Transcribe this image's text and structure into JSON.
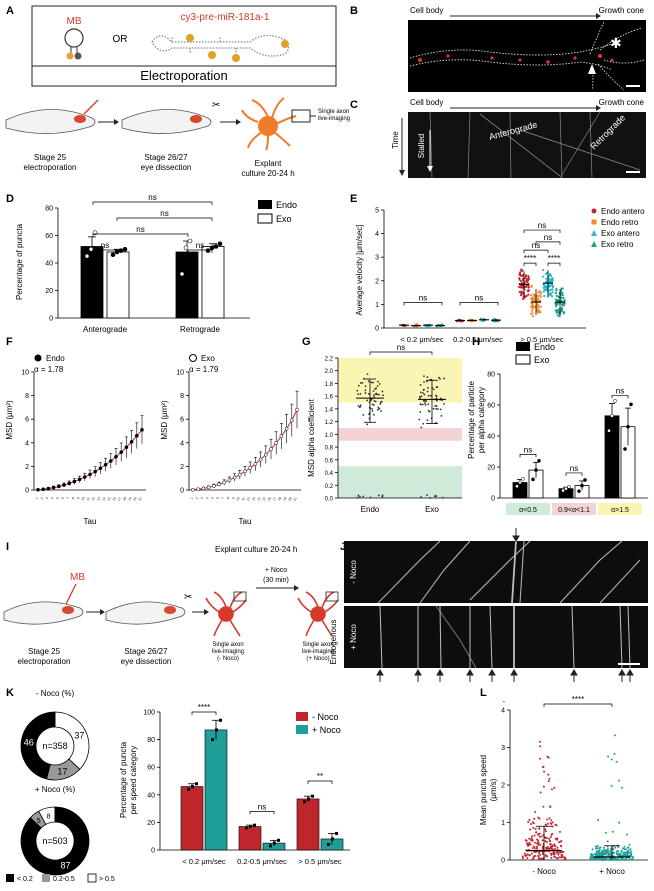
{
  "panels": {
    "A": {
      "letter": "A",
      "mb_label": "MB",
      "or_label": "OR",
      "probe_label": "cy3-pre-miR-181a-1",
      "electroporation": "Electroporation",
      "step1": [
        "Stage 25",
        "electroporation"
      ],
      "step2": [
        "Stage 26/27",
        "eye dissection"
      ],
      "step3": [
        "Explant",
        "culture 20-24 h"
      ],
      "single_axon": [
        "Single axon",
        "live-imaging"
      ]
    },
    "B": {
      "letter": "B",
      "left": "Cell body",
      "right": "Growth cone"
    },
    "C": {
      "letter": "C",
      "left": "Cell body",
      "right": "Growth cone",
      "time": "Time",
      "stalled": "Stalled",
      "anterograde": "Anterograde",
      "retrograde": "Retrograde"
    },
    "D": {
      "letter": "D",
      "ylabel": "Percentage of puncta",
      "legend": [
        "Endo",
        "Exo"
      ],
      "ns": "ns"
    },
    "E": {
      "letter": "E",
      "ylabel": "Average velocity [μm/sec]",
      "legend": [
        "Endo antero",
        "Endo retro",
        "Exo antero",
        "Exo retro"
      ],
      "ns": "ns",
      "stars": "****"
    },
    "F": {
      "letter": "F",
      "ylabel": "MSD (μm²)",
      "xlabel": "Tau",
      "endo_label": "Endo",
      "endo_alpha": "α = 1.78",
      "exo_label": "Exo",
      "exo_alpha": "α = 1.79"
    },
    "G": {
      "letter": "G",
      "ylabel": "MSD alpha coefficient",
      "ns": "ns"
    },
    "H": {
      "letter": "H",
      "ylabel": [
        "Percentage of particle",
        "per alpha category"
      ],
      "legend": [
        "Endo",
        "Exo"
      ],
      "ns": "ns",
      "cats": [
        "α<0.5",
        "0.9<α<1.1",
        "α>1.5"
      ]
    },
    "I": {
      "letter": "I",
      "mb_label": "MB",
      "explant": "Explant culture 20-24 h",
      "noco": "+ Noco",
      "noco_time": "(30 min)",
      "step1": [
        "Stage 25",
        "electroporation"
      ],
      "step2": [
        "Stage 26/27",
        "eye dissection"
      ],
      "img1": [
        "Single axon",
        "live-imaging",
        "(- Noco)"
      ],
      "img2": [
        "Single axon",
        "live-imaging",
        "(+ Noco)"
      ]
    },
    "J": {
      "letter": "J",
      "endogenous": "Endogenous",
      "minus_noco": "- Noco",
      "plus_noco": "+ Noco"
    },
    "K": {
      "letter": "K",
      "minus_title": "- Noco (%)",
      "plus_title": "+ Noco (%)",
      "minus_n": "n=358",
      "plus_n": "n=503",
      "minus_vals": [
        "46",
        "17",
        "37"
      ],
      "plus_vals": [
        "87",
        "5",
        "8"
      ],
      "legend": [
        "< 0.2",
        "0.2-0.5",
        "> 0.5"
      ],
      "ylabel": [
        "Percentage of puncta",
        "per speed category"
      ],
      "bar_legend": [
        "- Noco",
        "+ Noco"
      ],
      "ns": "ns",
      "stars4": "****",
      "stars2": "**"
    },
    "L": {
      "letter": "L",
      "ylabel": [
        "Mean puncta speed",
        "(μm/s)"
      ],
      "stars": "****"
    }
  },
  "chart_data": [
    {
      "panel": "D",
      "type": "bar",
      "categories": [
        "Anterograde",
        "Retrograde"
      ],
      "series": [
        {
          "name": "Endo",
          "values": [
            52,
            48
          ],
          "sem": [
            7,
            8
          ],
          "points": [
            [
              45,
              50,
              62
            ],
            [
              32,
              51,
              56
            ]
          ]
        },
        {
          "name": "Exo",
          "values": [
            48,
            52
          ],
          "sem": [
            2,
            2
          ],
          "points": [
            [
              46,
              48,
              49,
              50
            ],
            [
              49,
              51,
              52,
              54
            ]
          ]
        }
      ],
      "ylim": [
        0,
        80
      ],
      "yticks": [
        0,
        20,
        40,
        60,
        80
      ],
      "ylabel": "Percentage of puncta"
    },
    {
      "panel": "E",
      "type": "scatter",
      "categories": [
        "< 0.2 μm/sec",
        "0.2-0.5 μm/sec",
        "> 0.5 μm/sec"
      ],
      "series": [
        {
          "name": "Endo antero",
          "color": "#c0272d",
          "means": [
            0.12,
            0.32,
            1.85
          ]
        },
        {
          "name": "Endo retro",
          "color": "#f28b2b",
          "means": [
            0.1,
            0.32,
            1.1
          ]
        },
        {
          "name": "Exo antero",
          "color": "#29b9c9",
          "means": [
            0.12,
            0.35,
            1.9
          ]
        },
        {
          "name": "Exo retro",
          "color": "#1ea08c",
          "means": [
            0.1,
            0.33,
            1.1
          ]
        }
      ],
      "ylim": [
        0,
        5
      ],
      "yticks": [
        0,
        1,
        2,
        3,
        4,
        5
      ],
      "ylabel": "Average velocity [μm/sec]"
    },
    {
      "panel": "F-Endo",
      "type": "line",
      "x": [
        1,
        2,
        3,
        4,
        5,
        6,
        7,
        8,
        9,
        10,
        11,
        12,
        13,
        14,
        15,
        16,
        17,
        18,
        19,
        20,
        21
      ],
      "values": [
        0.02,
        0.06,
        0.12,
        0.2,
        0.3,
        0.42,
        0.56,
        0.72,
        0.9,
        1.1,
        1.32,
        1.56,
        1.84,
        2.14,
        2.46,
        2.82,
        3.2,
        3.62,
        4.08,
        4.6,
        5.1
      ],
      "ylim": [
        0,
        10
      ],
      "yticks": [
        0,
        2,
        4,
        6,
        8,
        10
      ],
      "ylabel": "MSD (μm²)",
      "xlabel": "Tau"
    },
    {
      "panel": "F-Exo",
      "type": "line",
      "x": [
        1,
        2,
        3,
        4,
        5,
        6,
        7,
        8,
        9,
        10,
        11,
        12,
        13,
        14,
        15,
        16,
        17,
        18,
        19,
        20,
        21
      ],
      "values": [
        0.02,
        0.06,
        0.13,
        0.22,
        0.34,
        0.48,
        0.64,
        0.84,
        1.06,
        1.3,
        1.58,
        1.88,
        2.2,
        2.58,
        3.0,
        3.46,
        3.98,
        4.56,
        5.2,
        5.9,
        6.8
      ],
      "ylim": [
        0,
        10
      ],
      "yticks": [
        0,
        2,
        4,
        6,
        8,
        10
      ],
      "ylabel": "MSD (μm²)",
      "xlabel": "Tau"
    },
    {
      "panel": "G",
      "type": "scatter",
      "categories": [
        "Endo",
        "Exo"
      ],
      "means": [
        1.57,
        1.55
      ],
      "ylim": [
        0,
        2.2
      ],
      "yticks": [
        0,
        0.2,
        0.4,
        0.6,
        0.8,
        1.0,
        1.2,
        1.4,
        1.6,
        1.8,
        2.0,
        2.2
      ],
      "ylabel": "MSD alpha coefficient",
      "bands": [
        {
          "from": 0,
          "to": 0.5,
          "color": "#cfead9"
        },
        {
          "from": 0.9,
          "to": 1.1,
          "color": "#f4d3d6"
        },
        {
          "from": 1.5,
          "to": 2.2,
          "color": "#fbf5b4"
        }
      ]
    },
    {
      "panel": "H",
      "type": "bar",
      "categories": [
        "α<0.5",
        "0.9<α<1.1",
        "α>1.5"
      ],
      "series": [
        {
          "name": "Endo",
          "values": [
            10,
            6,
            53
          ],
          "sem": [
            2,
            1,
            8
          ]
        },
        {
          "name": "Exo",
          "values": [
            18,
            8,
            46
          ],
          "sem": [
            5,
            3,
            12
          ]
        }
      ],
      "ylim": [
        0,
        80
      ],
      "yticks": [
        0,
        20,
        40,
        60,
        80
      ]
    },
    {
      "panel": "K-bar",
      "type": "bar",
      "categories": [
        "< 0.2 μm/sec",
        "0.2-0.5 μm/sec",
        "> 0.5 μm/sec"
      ],
      "series": [
        {
          "name": "- Noco",
          "color": "#c0272d",
          "values": [
            46,
            17,
            37
          ],
          "sem": [
            2,
            1,
            2
          ]
        },
        {
          "name": "+ Noco",
          "color": "#1f9d97",
          "values": [
            87,
            5,
            8
          ],
          "sem": [
            7,
            2,
            4
          ]
        }
      ],
      "ylim": [
        0,
        100
      ],
      "yticks": [
        0,
        20,
        40,
        60,
        80,
        100
      ]
    },
    {
      "panel": "K-donut",
      "type": "pie",
      "series": [
        {
          "name": "- Noco",
          "values": [
            46,
            17,
            37
          ]
        },
        {
          "name": "+ Noco",
          "values": [
            87,
            5,
            8
          ]
        }
      ],
      "labels": [
        "< 0.2",
        "0.2-0.5",
        "> 0.5"
      ]
    },
    {
      "panel": "L",
      "type": "scatter",
      "categories": [
        "- Noco",
        "+ Noco"
      ],
      "means": [
        0.25,
        0.08
      ],
      "sd": [
        0.65,
        0.3
      ],
      "ylim": [
        0,
        4
      ],
      "yticks": [
        0,
        1,
        2,
        3,
        4
      ]
    }
  ],
  "colors": {
    "red": "#c0272d",
    "teal": "#1f9d97",
    "orange": "#f28b2b",
    "cyan": "#29b9c9",
    "green": "#1ea08c"
  }
}
